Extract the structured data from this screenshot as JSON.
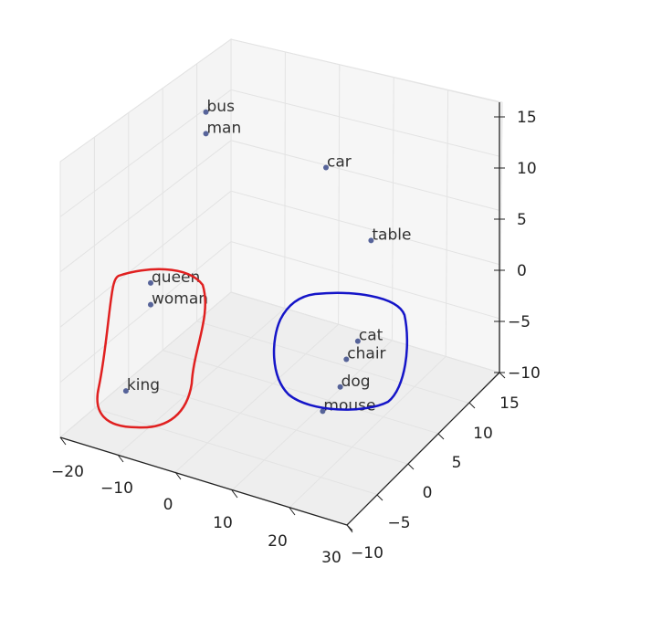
{
  "chart_data": {
    "type": "scatter",
    "projection": "3d",
    "grid": true,
    "xlim": [
      -20,
      30
    ],
    "ylim": [
      -10,
      15
    ],
    "zlim": [
      -10,
      15
    ],
    "x_ticks": [
      "−20",
      "−10",
      "0",
      "10",
      "20",
      "30"
    ],
    "y_ticks": [
      "−10",
      "−5",
      "0",
      "5",
      "10",
      "15"
    ],
    "z_ticks": [
      "15",
      "10",
      "5",
      "0",
      "−5",
      "−10"
    ],
    "point_color": "#3b4a8a",
    "points": [
      {
        "label": "bus",
        "x": -18,
        "y": 12,
        "z": 8
      },
      {
        "label": "man",
        "x": -18,
        "y": 12,
        "z": 6
      },
      {
        "label": "car",
        "x": 4,
        "y": 11,
        "z": 7
      },
      {
        "label": "table",
        "x": 14,
        "y": 9,
        "z": 3
      },
      {
        "label": "queen",
        "x": -17,
        "y": 2,
        "z": -2
      },
      {
        "label": "woman",
        "x": -17,
        "y": 2,
        "z": -4
      },
      {
        "label": "king",
        "x": -16,
        "y": -3,
        "z": -9
      },
      {
        "label": "cat",
        "x": 17,
        "y": 4,
        "z": -3
      },
      {
        "label": "chair",
        "x": 15,
        "y": 4,
        "z": -5
      },
      {
        "label": "dog",
        "x": 15,
        "y": 3,
        "z": -7
      },
      {
        "label": "mouse",
        "x": 13,
        "y": 2,
        "z": -9
      }
    ]
  },
  "annotations": [
    {
      "color": "#e02020"
    },
    {
      "color": "#1515c8"
    }
  ]
}
